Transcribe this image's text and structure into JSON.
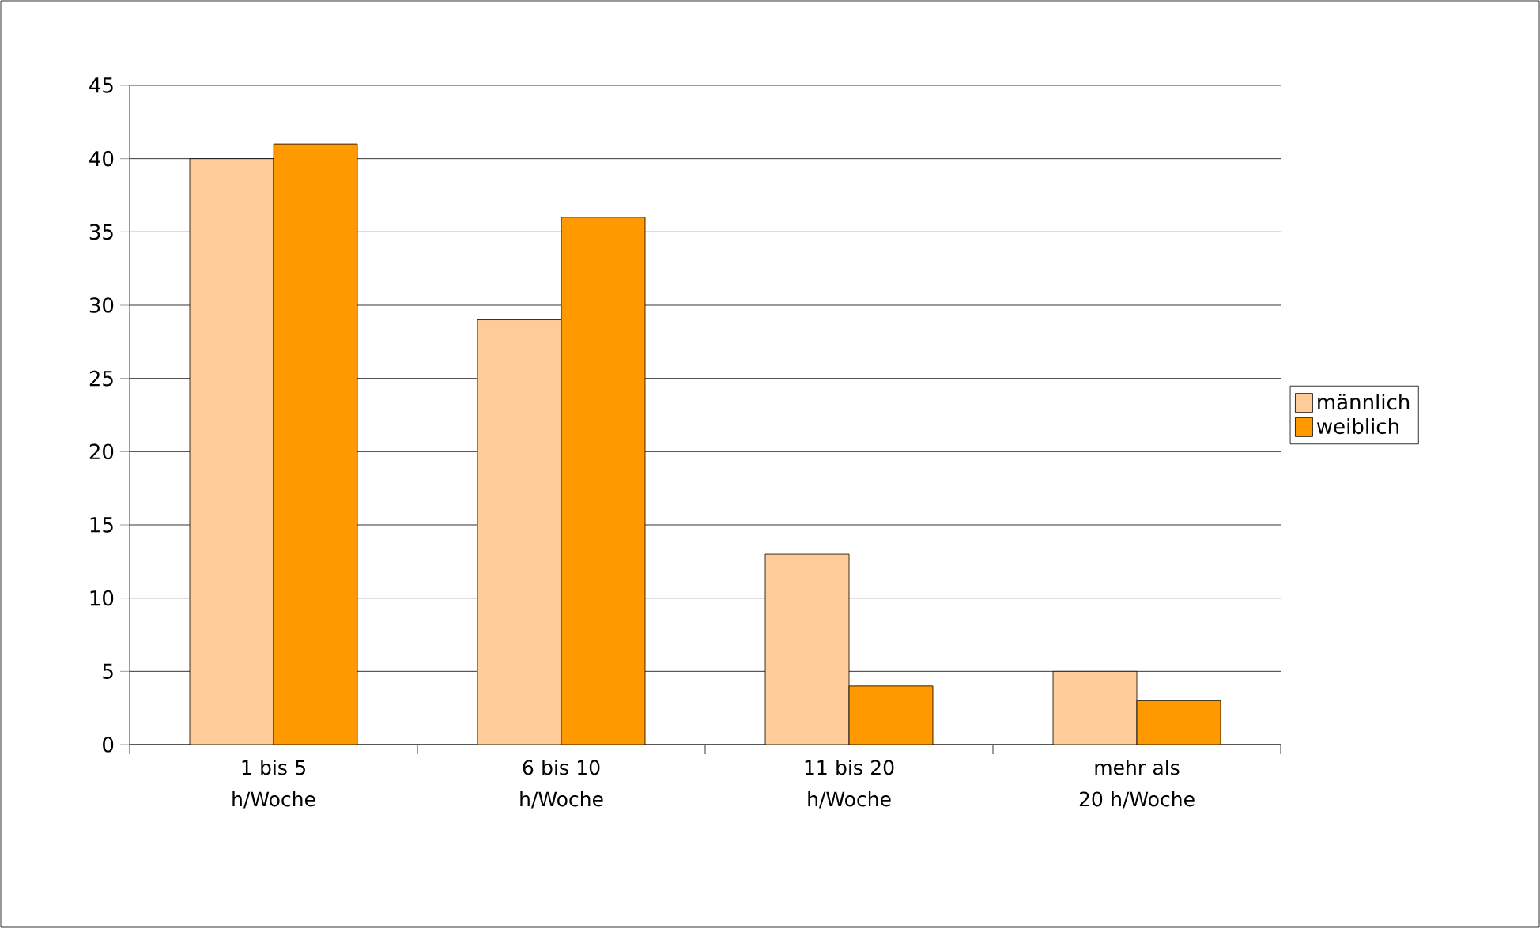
{
  "chart_data": {
    "type": "bar",
    "categories": [
      "1 bis 5 h/Woche",
      "6 bis 10 h/Woche",
      "11 bis 20 h/Woche",
      "mehr als 20 h/Woche"
    ],
    "series": [
      {
        "name": "männlich",
        "color": "#ffcc99",
        "values": [
          40,
          29,
          13,
          5
        ]
      },
      {
        "name": "weiblich",
        "color": "#ff9900",
        "values": [
          41,
          36,
          4,
          3
        ]
      }
    ],
    "ylim": [
      0,
      45
    ],
    "yticks": [
      0,
      5,
      10,
      15,
      20,
      25,
      30,
      35,
      40,
      45
    ],
    "grid": "y",
    "legend": "right"
  }
}
